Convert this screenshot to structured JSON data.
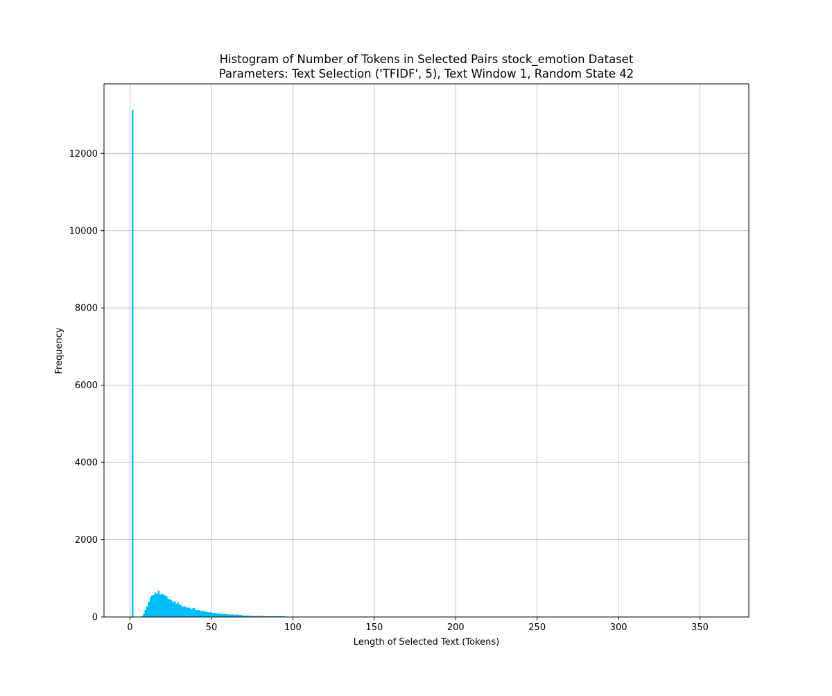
{
  "chart_data": {
    "type": "bar",
    "title": "Histogram of Number of Tokens in Selected Pairs stock_emotion Dataset",
    "subtitle": "Parameters: Text Selection ('TFIDF', 5), Text Window 1, Random State 42",
    "xlabel": "Length of Selected Text (Tokens)",
    "ylabel": "Frequency",
    "xlim": [
      -16,
      380
    ],
    "ylim": [
      0,
      13800
    ],
    "xticks": [
      0,
      50,
      100,
      150,
      200,
      250,
      300,
      350
    ],
    "xtick_labels": [
      "0",
      "50",
      "100",
      "150",
      "200",
      "250",
      "300",
      "350"
    ],
    "yticks": [
      0,
      2000,
      4000,
      6000,
      8000,
      10000,
      12000
    ],
    "ytick_labels": [
      "0",
      "2000",
      "4000",
      "6000",
      "8000",
      "10000",
      "12000"
    ],
    "grid": true,
    "bar_color": "#00bfff",
    "bin_width": 1,
    "bins": {
      "x": [
        0,
        1,
        2,
        3,
        4,
        5,
        6,
        7,
        8,
        9,
        10,
        11,
        12,
        13,
        14,
        15,
        16,
        17,
        18,
        19,
        20,
        21,
        22,
        23,
        24,
        25,
        26,
        27,
        28,
        29,
        30,
        31,
        32,
        33,
        34,
        35,
        36,
        37,
        38,
        39,
        40,
        41,
        42,
        43,
        44,
        45,
        46,
        47,
        48,
        49,
        50,
        51,
        52,
        53,
        54,
        55,
        56,
        57,
        58,
        59,
        60,
        61,
        62,
        63,
        64,
        65,
        66,
        67,
        68,
        69,
        70,
        71,
        72,
        73,
        74,
        75,
        76,
        77,
        78,
        79,
        80,
        81,
        82,
        83,
        84,
        85,
        86,
        87,
        88,
        89,
        90,
        91,
        92,
        93,
        94,
        95,
        96,
        97,
        98,
        99,
        100,
        101,
        102,
        103,
        104,
        105,
        106,
        107,
        108,
        109,
        110,
        111,
        112,
        113,
        114,
        115,
        116,
        117,
        118,
        119,
        120
      ],
      "values": [
        0,
        13130,
        0,
        0,
        0,
        0,
        10,
        30,
        90,
        180,
        280,
        400,
        520,
        560,
        570,
        640,
        600,
        680,
        580,
        600,
        580,
        560,
        540,
        470,
        460,
        430,
        390,
        400,
        340,
        380,
        320,
        300,
        270,
        280,
        250,
        240,
        240,
        210,
        220,
        230,
        180,
        170,
        180,
        150,
        160,
        140,
        140,
        130,
        120,
        130,
        110,
        100,
        110,
        90,
        90,
        80,
        80,
        80,
        70,
        70,
        60,
        60,
        60,
        60,
        50,
        60,
        50,
        50,
        50,
        40,
        40,
        40,
        40,
        40,
        30,
        30,
        30,
        30,
        30,
        25,
        25,
        25,
        25,
        20,
        20,
        20,
        20,
        20,
        20,
        15,
        15,
        15,
        15,
        15,
        15,
        12,
        12,
        12,
        12,
        12,
        10,
        10,
        10,
        10,
        10,
        8,
        8,
        8,
        8,
        8,
        6,
        6,
        6,
        5,
        5,
        5,
        5,
        5,
        5,
        5,
        5
      ]
    }
  }
}
